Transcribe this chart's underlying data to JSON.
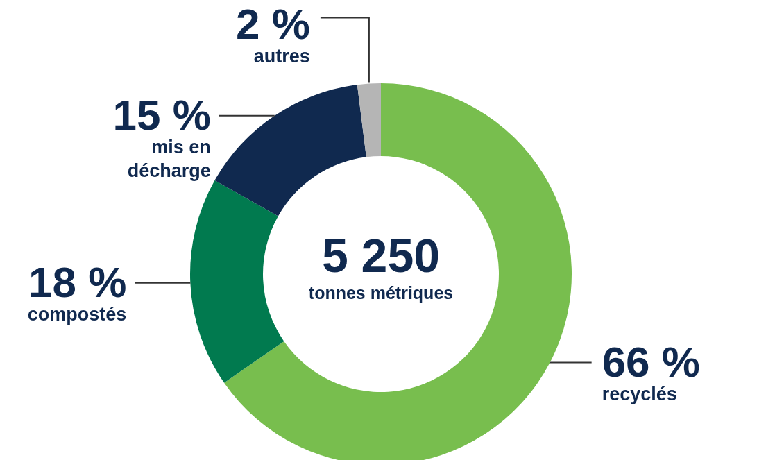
{
  "chart_data": {
    "type": "donut",
    "categories": [
      "recyclés",
      "compostés",
      "mis en décharge",
      "autres"
    ],
    "values": [
      66,
      18,
      15,
      2
    ],
    "colors": [
      "#78be4e",
      "#017a4f",
      "#10294f",
      "#b5b5b5"
    ],
    "value_labels": [
      "66 %",
      "18 %",
      "15 %",
      "2 %"
    ],
    "annotations": [
      "5 250",
      "tonnes métriques"
    ]
  }
}
